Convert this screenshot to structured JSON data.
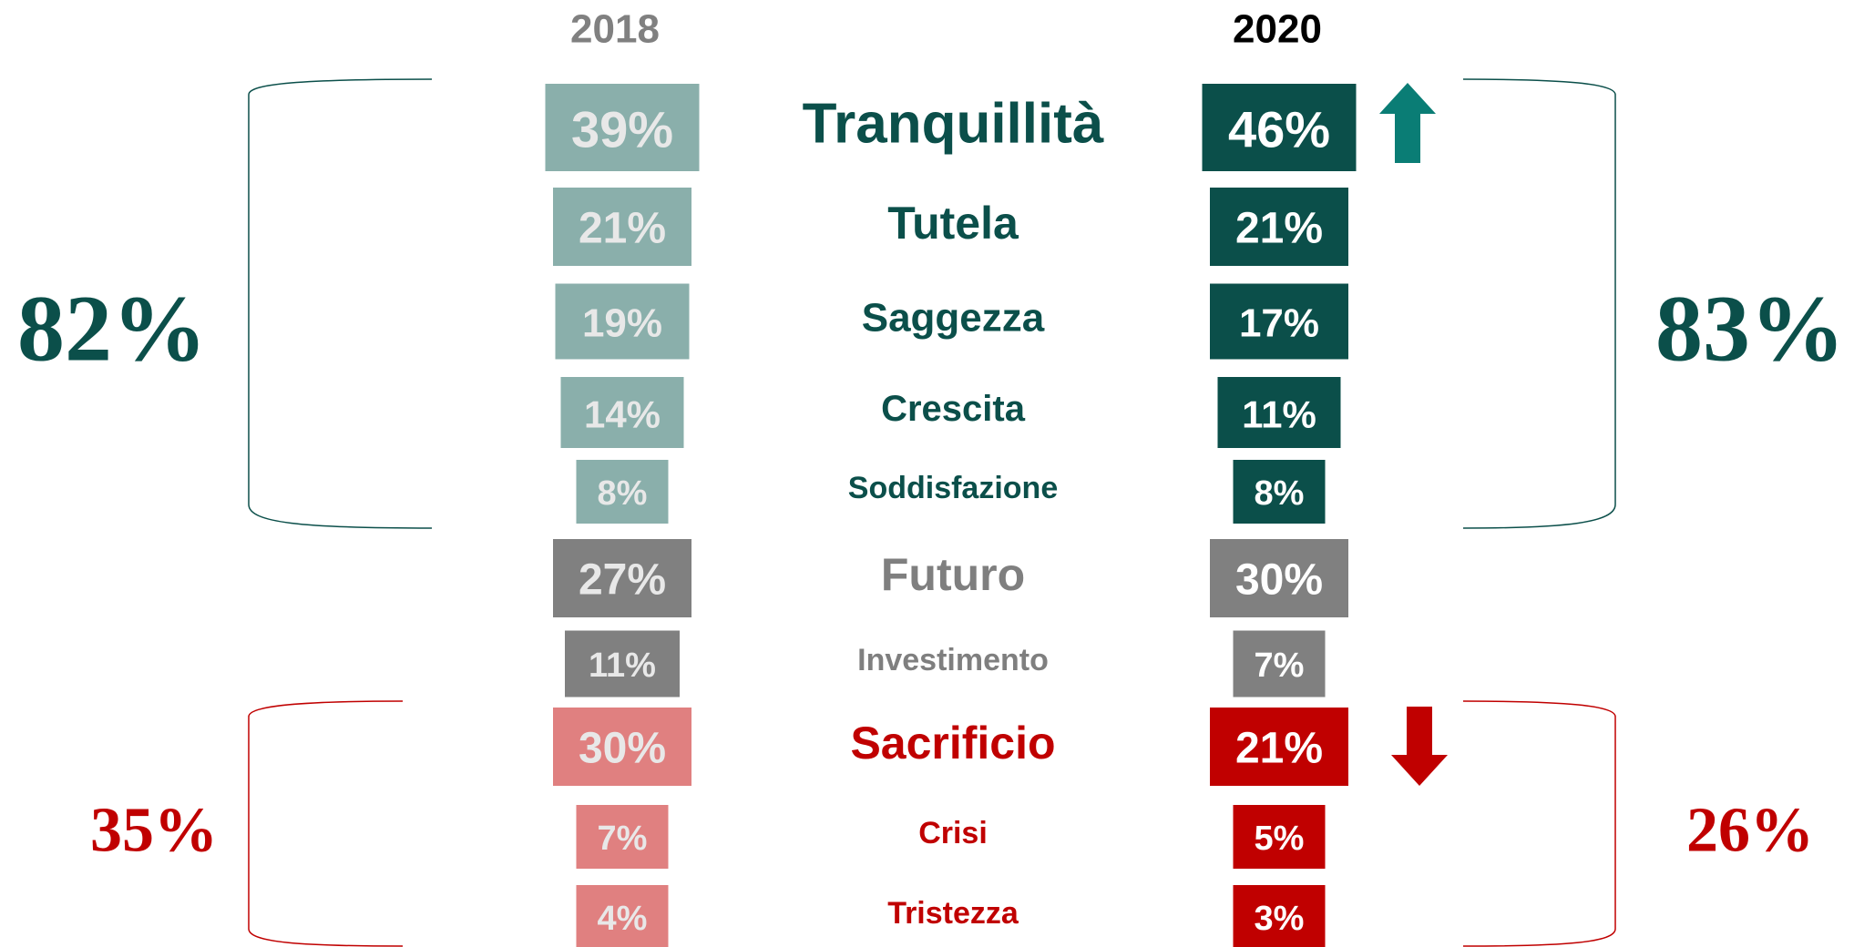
{
  "years": [
    "2018",
    "2020"
  ],
  "rows": [
    {
      "label": "Tranquillità",
      "left": "39%",
      "right": "46%"
    },
    {
      "label": "Tutela",
      "left": "21%",
      "right": "21%"
    },
    {
      "label": "Saggezza",
      "left": "19%",
      "right": "17%"
    },
    {
      "label": "Crescita",
      "left": "14%",
      "right": "11%"
    },
    {
      "label": "Soddisfazione",
      "left": "8%",
      "right": "8%"
    },
    {
      "label": "Futuro",
      "left": "27%",
      "right": "30%"
    },
    {
      "label": "Investimento",
      "left": "11%",
      "right": "7%"
    },
    {
      "label": "Sacrificio",
      "left": "30%",
      "right": "21%"
    },
    {
      "label": "Crisi",
      "left": "7%",
      "right": "5%"
    },
    {
      "label": "Tristezza",
      "left": "4%",
      "right": "3%"
    }
  ],
  "groups": [
    {
      "left_total": "82%",
      "right_total": "83%"
    },
    {
      "left_total": "35%",
      "right_total": "26%"
    }
  ]
}
